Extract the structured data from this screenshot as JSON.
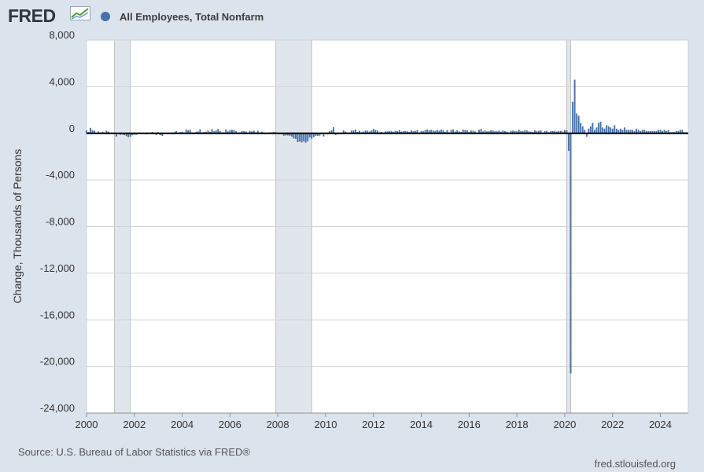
{
  "header": {
    "logo_text": "FRED",
    "legend_label": "All Employees, Total Nonfarm",
    "series_color": "#4572a7"
  },
  "footer": {
    "source": "U.S. Bureau of Labor Statistics via FRED®",
    "site": "fred.stlouisfed.org"
  },
  "chart_data": {
    "type": "bar",
    "title": "",
    "ylabel": "Change, Thousands of Persons",
    "xlabel": "",
    "ylim": [
      -24000,
      8000
    ],
    "xlim": [
      "2000-01",
      "2025-03"
    ],
    "yticks": [
      "8,000",
      "4,000",
      "0",
      "-4,000",
      "-8,000",
      "-12,000",
      "-16,000",
      "-20,000",
      "-24,000"
    ],
    "ytick_values": [
      8000,
      4000,
      0,
      -4000,
      -8000,
      -12000,
      -16000,
      -20000,
      -24000
    ],
    "xticks": [
      "2000",
      "2002",
      "2004",
      "2006",
      "2008",
      "2010",
      "2012",
      "2014",
      "2016",
      "2018",
      "2020",
      "2022",
      "2024"
    ],
    "grid": true,
    "legend": "top-left",
    "recessions": [
      {
        "start": "2001-03",
        "end": "2001-11"
      },
      {
        "start": "2007-12",
        "end": "2009-06"
      },
      {
        "start": "2020-02",
        "end": "2020-04"
      }
    ],
    "series": [
      {
        "name": "All Employees, Total Nonfarm",
        "x": [
          "2000-01",
          "2000-02",
          "2000-03",
          "2000-04",
          "2000-05",
          "2000-06",
          "2000-07",
          "2000-08",
          "2000-09",
          "2000-10",
          "2000-11",
          "2000-12",
          "2001-01",
          "2001-02",
          "2001-03",
          "2001-04",
          "2001-05",
          "2001-06",
          "2001-07",
          "2001-08",
          "2001-09",
          "2001-10",
          "2001-11",
          "2001-12",
          "2002-01",
          "2002-02",
          "2002-03",
          "2002-04",
          "2002-05",
          "2002-06",
          "2002-07",
          "2002-08",
          "2002-09",
          "2002-10",
          "2002-11",
          "2002-12",
          "2003-01",
          "2003-02",
          "2003-03",
          "2003-04",
          "2003-05",
          "2003-06",
          "2003-07",
          "2003-08",
          "2003-09",
          "2003-10",
          "2003-11",
          "2003-12",
          "2004-01",
          "2004-02",
          "2004-03",
          "2004-04",
          "2004-05",
          "2004-06",
          "2004-07",
          "2004-08",
          "2004-09",
          "2004-10",
          "2004-11",
          "2004-12",
          "2005-01",
          "2005-02",
          "2005-03",
          "2005-04",
          "2005-05",
          "2005-06",
          "2005-07",
          "2005-08",
          "2005-09",
          "2005-10",
          "2005-11",
          "2005-12",
          "2006-01",
          "2006-02",
          "2006-03",
          "2006-04",
          "2006-05",
          "2006-06",
          "2006-07",
          "2006-08",
          "2006-09",
          "2006-10",
          "2006-11",
          "2006-12",
          "2007-01",
          "2007-02",
          "2007-03",
          "2007-04",
          "2007-05",
          "2007-06",
          "2007-07",
          "2007-08",
          "2007-09",
          "2007-10",
          "2007-11",
          "2007-12",
          "2008-01",
          "2008-02",
          "2008-03",
          "2008-04",
          "2008-05",
          "2008-06",
          "2008-07",
          "2008-08",
          "2008-09",
          "2008-10",
          "2008-11",
          "2008-12",
          "2009-01",
          "2009-02",
          "2009-03",
          "2009-04",
          "2009-05",
          "2009-06",
          "2009-07",
          "2009-08",
          "2009-09",
          "2009-10",
          "2009-11",
          "2009-12",
          "2010-01",
          "2010-02",
          "2010-03",
          "2010-04",
          "2010-05",
          "2010-06",
          "2010-07",
          "2010-08",
          "2010-09",
          "2010-10",
          "2010-11",
          "2010-12",
          "2011-01",
          "2011-02",
          "2011-03",
          "2011-04",
          "2011-05",
          "2011-06",
          "2011-07",
          "2011-08",
          "2011-09",
          "2011-10",
          "2011-11",
          "2011-12",
          "2012-01",
          "2012-02",
          "2012-03",
          "2012-04",
          "2012-05",
          "2012-06",
          "2012-07",
          "2012-08",
          "2012-09",
          "2012-10",
          "2012-11",
          "2012-12",
          "2013-01",
          "2013-02",
          "2013-03",
          "2013-04",
          "2013-05",
          "2013-06",
          "2013-07",
          "2013-08",
          "2013-09",
          "2013-10",
          "2013-11",
          "2013-12",
          "2014-01",
          "2014-02",
          "2014-03",
          "2014-04",
          "2014-05",
          "2014-06",
          "2014-07",
          "2014-08",
          "2014-09",
          "2014-10",
          "2014-11",
          "2014-12",
          "2015-01",
          "2015-02",
          "2015-03",
          "2015-04",
          "2015-05",
          "2015-06",
          "2015-07",
          "2015-08",
          "2015-09",
          "2015-10",
          "2015-11",
          "2015-12",
          "2016-01",
          "2016-02",
          "2016-03",
          "2016-04",
          "2016-05",
          "2016-06",
          "2016-07",
          "2016-08",
          "2016-09",
          "2016-10",
          "2016-11",
          "2016-12",
          "2017-01",
          "2017-02",
          "2017-03",
          "2017-04",
          "2017-05",
          "2017-06",
          "2017-07",
          "2017-08",
          "2017-09",
          "2017-10",
          "2017-11",
          "2017-12",
          "2018-01",
          "2018-02",
          "2018-03",
          "2018-04",
          "2018-05",
          "2018-06",
          "2018-07",
          "2018-08",
          "2018-09",
          "2018-10",
          "2018-11",
          "2018-12",
          "2019-01",
          "2019-02",
          "2019-03",
          "2019-04",
          "2019-05",
          "2019-06",
          "2019-07",
          "2019-08",
          "2019-09",
          "2019-10",
          "2019-11",
          "2019-12",
          "2020-01",
          "2020-02",
          "2020-03",
          "2020-04",
          "2020-05",
          "2020-06",
          "2020-07",
          "2020-08",
          "2020-09",
          "2020-10",
          "2020-11",
          "2020-12",
          "2021-01",
          "2021-02",
          "2021-03",
          "2021-04",
          "2021-05",
          "2021-06",
          "2021-07",
          "2021-08",
          "2021-09",
          "2021-10",
          "2021-11",
          "2021-12",
          "2022-01",
          "2022-02",
          "2022-03",
          "2022-04",
          "2022-05",
          "2022-06",
          "2022-07",
          "2022-08",
          "2022-09",
          "2022-10",
          "2022-11",
          "2022-12",
          "2023-01",
          "2023-02",
          "2023-03",
          "2023-04",
          "2023-05",
          "2023-06",
          "2023-07",
          "2023-08",
          "2023-09",
          "2023-10",
          "2023-11",
          "2023-12",
          "2024-01",
          "2024-02",
          "2024-03",
          "2024-04",
          "2024-05",
          "2024-06",
          "2024-07",
          "2024-08",
          "2024-09",
          "2024-10",
          "2024-11",
          "2024-12",
          "2025-01",
          "2025-02"
        ],
        "values": [
          250,
          120,
          470,
          280,
          220,
          -50,
          160,
          10,
          120,
          0,
          220,
          140,
          -20,
          50,
          -60,
          -270,
          -50,
          -130,
          -110,
          -160,
          -240,
          -330,
          -290,
          -170,
          -120,
          -130,
          -20,
          -80,
          0,
          40,
          -90,
          -20,
          -50,
          120,
          10,
          -150,
          90,
          -150,
          -220,
          -50,
          -10,
          -10,
          30,
          -40,
          100,
          190,
          20,
          100,
          150,
          50,
          330,
          250,
          310,
          80,
          60,
          130,
          160,
          350,
          60,
          130,
          130,
          240,
          120,
          360,
          170,
          250,
          370,
          190,
          70,
          90,
          340,
          160,
          280,
          310,
          280,
          180,
          30,
          80,
          200,
          180,
          150,
          30,
          200,
          170,
          230,
          90,
          220,
          70,
          140,
          80,
          40,
          -20,
          80,
          80,
          110,
          90,
          10,
          -80,
          -60,
          -200,
          -180,
          -180,
          -210,
          -280,
          -450,
          -480,
          -760,
          -700,
          -790,
          -700,
          -800,
          -690,
          -350,
          -470,
          -330,
          -210,
          -220,
          -200,
          10,
          -270,
          -20,
          -90,
          170,
          250,
          520,
          -140,
          -90,
          -60,
          -60,
          250,
          140,
          70,
          50,
          230,
          240,
          320,
          120,
          220,
          90,
          150,
          230,
          220,
          150,
          240,
          380,
          280,
          240,
          80,
          120,
          60,
          160,
          170,
          180,
          200,
          130,
          220,
          180,
          280,
          140,
          180,
          200,
          170,
          120,
          260,
          190,
          210,
          270,
          60,
          180,
          170,
          280,
          320,
          250,
          300,
          230,
          210,
          290,
          220,
          330,
          270,
          120,
          280,
          90,
          290,
          340,
          160,
          250,
          160,
          120,
          330,
          280,
          260,
          120,
          240,
          220,
          160,
          40,
          300,
          380,
          160,
          250,
          160,
          190,
          270,
          230,
          180,
          170,
          230,
          140,
          230,
          190,
          140,
          60,
          210,
          230,
          190,
          170,
          320,
          190,
          180,
          270,
          240,
          160,
          140,
          120,
          260,
          180,
          210,
          260,
          50,
          190,
          220,
          90,
          190,
          190,
          210,
          150,
          210,
          210,
          150,
          280,
          260,
          -1500,
          -20600,
          2700,
          4600,
          1700,
          1500,
          900,
          600,
          300,
          -300,
          400,
          600,
          900,
          300,
          500,
          900,
          1000,
          500,
          400,
          700,
          600,
          500,
          400,
          700,
          400,
          300,
          400,
          300,
          500,
          300,
          300,
          300,
          300,
          200,
          400,
          300,
          200,
          300,
          300,
          200,
          200,
          200,
          200,
          200,
          200,
          300,
          300,
          200,
          300,
          200,
          300,
          100,
          100,
          100,
          200,
          200,
          300,
          300,
          100,
          100
        ]
      }
    ]
  }
}
